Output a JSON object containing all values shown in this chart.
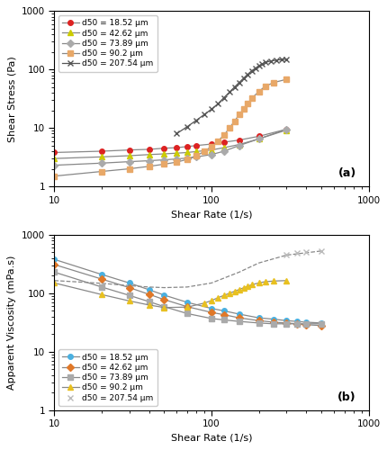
{
  "panel_a": {
    "title": "(a)",
    "xlabel": "Shear Rate (1/s)",
    "ylabel": "Shear Stress (Pa)",
    "xlim": [
      10,
      1000
    ],
    "ylim": [
      1,
      1000
    ],
    "series": [
      {
        "label": "d50 = 18.52 μm",
        "line_color": "#888888",
        "marker_color": "#dd2222",
        "marker": "o",
        "linestyle": "-",
        "x": [
          10,
          20,
          30,
          40,
          50,
          60,
          70,
          80,
          100,
          120,
          150,
          200,
          300
        ],
        "y": [
          3.8,
          4.0,
          4.2,
          4.3,
          4.5,
          4.6,
          4.8,
          5.0,
          5.3,
          5.7,
          6.2,
          7.2,
          9.5
        ]
      },
      {
        "label": "d50 = 42.62 μm",
        "line_color": "#888888",
        "marker_color": "#cccc00",
        "marker": "^",
        "linestyle": "-",
        "x": [
          10,
          20,
          30,
          40,
          50,
          60,
          70,
          80,
          100,
          120,
          150,
          200,
          300
        ],
        "y": [
          3.0,
          3.2,
          3.35,
          3.5,
          3.6,
          3.7,
          3.8,
          3.95,
          4.2,
          4.6,
          5.2,
          6.5,
          9.2
        ]
      },
      {
        "label": "d50 = 73.89 μm",
        "line_color": "#888888",
        "marker_color": "#aaaaaa",
        "marker": "D",
        "linestyle": "-",
        "x": [
          10,
          20,
          30,
          40,
          50,
          60,
          70,
          80,
          100,
          120,
          150,
          200,
          300
        ],
        "y": [
          2.3,
          2.5,
          2.65,
          2.75,
          2.85,
          2.95,
          3.05,
          3.2,
          3.5,
          4.0,
          5.0,
          6.5,
          9.5
        ]
      },
      {
        "label": "d50 = 90.2 μm",
        "line_color": "#888888",
        "marker_color": "#e8a868",
        "marker": "s",
        "linestyle": "-",
        "x": [
          10,
          20,
          30,
          40,
          50,
          60,
          70,
          80,
          90,
          100,
          110,
          120,
          130,
          140,
          150,
          160,
          170,
          180,
          200,
          220,
          250,
          300
        ],
        "y": [
          1.5,
          1.8,
          2.0,
          2.2,
          2.4,
          2.6,
          2.9,
          3.3,
          4.0,
          4.8,
          6.0,
          7.5,
          10.0,
          13.0,
          17.0,
          21.0,
          26.0,
          32.0,
          42.0,
          52.0,
          60.0,
          68.0
        ]
      },
      {
        "label": "d50 = 207.54 μm",
        "line_color": "#555555",
        "marker_color": "#555555",
        "marker": "x",
        "linestyle": "-",
        "x": [
          60,
          70,
          80,
          90,
          100,
          110,
          120,
          130,
          140,
          150,
          160,
          170,
          180,
          190,
          200,
          210,
          220,
          240,
          260,
          280,
          300
        ],
        "y": [
          8.0,
          10.5,
          13.5,
          17.0,
          21.0,
          26.0,
          33.0,
          41.0,
          50.0,
          60.0,
          71.0,
          83.0,
          95.0,
          105.0,
          116.0,
          125.0,
          133.0,
          140.0,
          145.0,
          148.0,
          150.0
        ]
      }
    ]
  },
  "panel_b": {
    "title": "(b)",
    "xlabel": "Shear Rate (1/s)",
    "ylabel": "Apparent Viscosity (mPa.s)",
    "xlim": [
      10,
      1000
    ],
    "ylim": [
      1,
      1000
    ],
    "series": [
      {
        "label": "d50 = 18.52 μm",
        "line_color": "#888888",
        "marker_color": "#4ab0e0",
        "marker": "o",
        "linestyle": "-",
        "x": [
          10,
          20,
          30,
          40,
          50,
          70,
          100,
          120,
          150,
          200,
          250,
          300,
          350,
          400,
          500
        ],
        "y": [
          380,
          210,
          150,
          115,
          93,
          70,
          55,
          50,
          44,
          38,
          36,
          34,
          33,
          32,
          31
        ]
      },
      {
        "label": "d50 = 42.62 μm",
        "line_color": "#888888",
        "marker_color": "#e07828",
        "marker": "D",
        "linestyle": "-",
        "x": [
          10,
          20,
          30,
          40,
          50,
          70,
          100,
          120,
          150,
          200,
          250,
          300,
          350,
          400,
          500
        ],
        "y": [
          310,
          175,
          125,
          96,
          78,
          59,
          47,
          43,
          38,
          34,
          32,
          31,
          30,
          29,
          28
        ]
      },
      {
        "label": "d50 = 73.89 μm",
        "line_color": "#888888",
        "marker_color": "#aaaaaa",
        "marker": "s",
        "linestyle": "-",
        "x": [
          10,
          20,
          30,
          40,
          50,
          70,
          100,
          120,
          150,
          200,
          250,
          300,
          350,
          400,
          500
        ],
        "y": [
          230,
          128,
          92,
          72,
          59,
          45,
          37,
          35,
          33,
          31,
          30,
          30,
          30,
          30,
          30
        ]
      },
      {
        "label": "d50 = 90.2 μm",
        "line_color": "#888888",
        "marker_color": "#e8c020",
        "marker": "^",
        "linestyle": "-",
        "x": [
          10,
          20,
          30,
          40,
          50,
          70,
          90,
          100,
          110,
          120,
          130,
          140,
          150,
          160,
          170,
          180,
          200,
          220,
          250,
          300
        ],
        "y": [
          150,
          95,
          74,
          63,
          57,
          58,
          68,
          75,
          84,
          92,
          100,
          108,
          116,
          124,
          132,
          140,
          150,
          158,
          162,
          165
        ]
      },
      {
        "label": "d50 = 207.54 μm",
        "line_color": "#888888",
        "marker_color": "#bbbbbb",
        "marker": "x",
        "linestyle": "--",
        "smooth_x": [
          10,
          15,
          20,
          30,
          40,
          50,
          70,
          100,
          150,
          200,
          300,
          500
        ],
        "smooth_y": [
          165,
          155,
          148,
          135,
          128,
          125,
          128,
          150,
          230,
          330,
          450,
          530
        ],
        "x": [
          300,
          350,
          400,
          500
        ],
        "y": [
          450,
          490,
          510,
          530
        ]
      }
    ]
  }
}
